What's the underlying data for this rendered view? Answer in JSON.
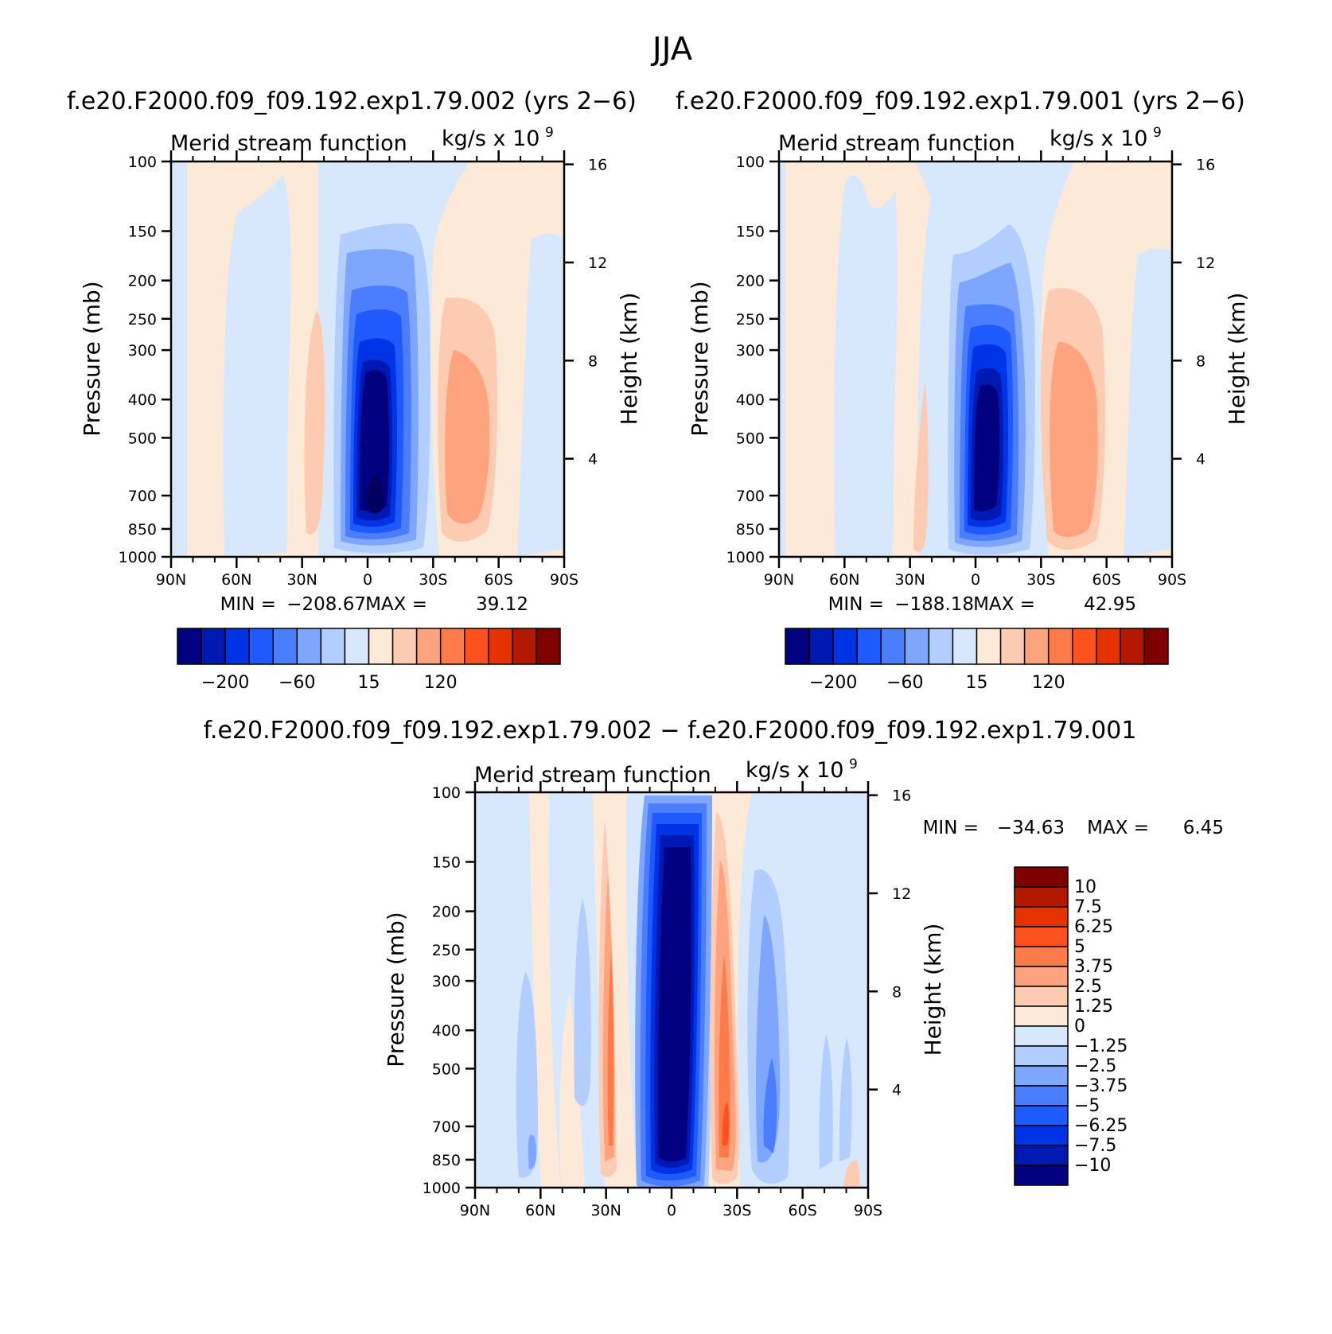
{
  "page_title": "JJA",
  "colors": {
    "neg": [
      "#000080",
      "#0019b2",
      "#0032e6",
      "#1e5aff",
      "#4b7eff",
      "#7ea6ff",
      "#b2ceff",
      "#d7e8fd"
    ],
    "pos": [
      "#fde9d7",
      "#fdcbb2",
      "#fda47e",
      "#fd7a4b",
      "#fd521e",
      "#e63200",
      "#b21900",
      "#800000"
    ]
  },
  "chart_data": [
    {
      "type": "contour",
      "header": "f.e20.F2000.f09_f09.192.exp1.79.002 (yrs 2−6)",
      "title_left": "Merid stream function",
      "title_right": "kg/s x 10",
      "title_right_sup": "9",
      "xlabel": "",
      "ylabel": "Pressure (mb)",
      "ylabel_right": "Height (km)",
      "x_ticks": [
        "90N",
        "60N",
        "30N",
        "0",
        "30S",
        "60S",
        "90S"
      ],
      "y_ticks": [
        "100",
        "150",
        "200",
        "250",
        "300",
        "400",
        "500",
        "700",
        "850",
        "1000"
      ],
      "y_right_ticks": [
        "16",
        "12",
        "8",
        "4"
      ],
      "stats": {
        "min_label": "MIN =",
        "min": "−208.67",
        "max_label": "MAX =",
        "max": "39.12"
      },
      "colorbar_labels": [
        "−200",
        "−60",
        "15",
        "120"
      ],
      "field_extrema": {
        "min": -208.67,
        "max": 39.12
      }
    },
    {
      "type": "contour",
      "header": "f.e20.F2000.f09_f09.192.exp1.79.001 (yrs 2−6)",
      "title_left": "Merid stream function",
      "title_right": "kg/s x 10",
      "title_right_sup": "9",
      "xlabel": "",
      "ylabel": "Pressure (mb)",
      "ylabel_right": "Height (km)",
      "x_ticks": [
        "90N",
        "60N",
        "30N",
        "0",
        "30S",
        "60S",
        "90S"
      ],
      "y_ticks": [
        "100",
        "150",
        "200",
        "250",
        "300",
        "400",
        "500",
        "700",
        "850",
        "1000"
      ],
      "y_right_ticks": [
        "16",
        "12",
        "8",
        "4"
      ],
      "stats": {
        "min_label": "MIN =",
        "min": "−188.18",
        "max_label": "MAX =",
        "max": "42.95"
      },
      "colorbar_labels": [
        "−200",
        "−60",
        "15",
        "120"
      ],
      "field_extrema": {
        "min": -188.18,
        "max": 42.95
      }
    },
    {
      "type": "contour",
      "header": "f.e20.F2000.f09_f09.192.exp1.79.002 − f.e20.F2000.f09_f09.192.exp1.79.001",
      "title_left": "Merid stream function",
      "title_right": "kg/s x 10",
      "title_right_sup": "9",
      "xlabel": "",
      "ylabel": "Pressure (mb)",
      "ylabel_right": "Height (km)",
      "x_ticks": [
        "90N",
        "60N",
        "30N",
        "0",
        "30S",
        "60S",
        "90S"
      ],
      "y_ticks": [
        "100",
        "150",
        "200",
        "250",
        "300",
        "400",
        "500",
        "700",
        "850",
        "1000"
      ],
      "y_right_ticks": [
        "16",
        "12",
        "8",
        "4"
      ],
      "stats": {
        "min_label": "MIN =",
        "min": "−34.63",
        "max_label": "MAX =",
        "max": "6.45"
      },
      "colorbar_labels": [
        "10",
        "7.5",
        "6.25",
        "5",
        "3.75",
        "2.5",
        "1.25",
        "0",
        "−1.25",
        "−2.5",
        "−3.75",
        "−5",
        "−6.25",
        "−7.5",
        "−10"
      ],
      "field_extrema": {
        "min": -34.63,
        "max": 6.45
      }
    }
  ]
}
